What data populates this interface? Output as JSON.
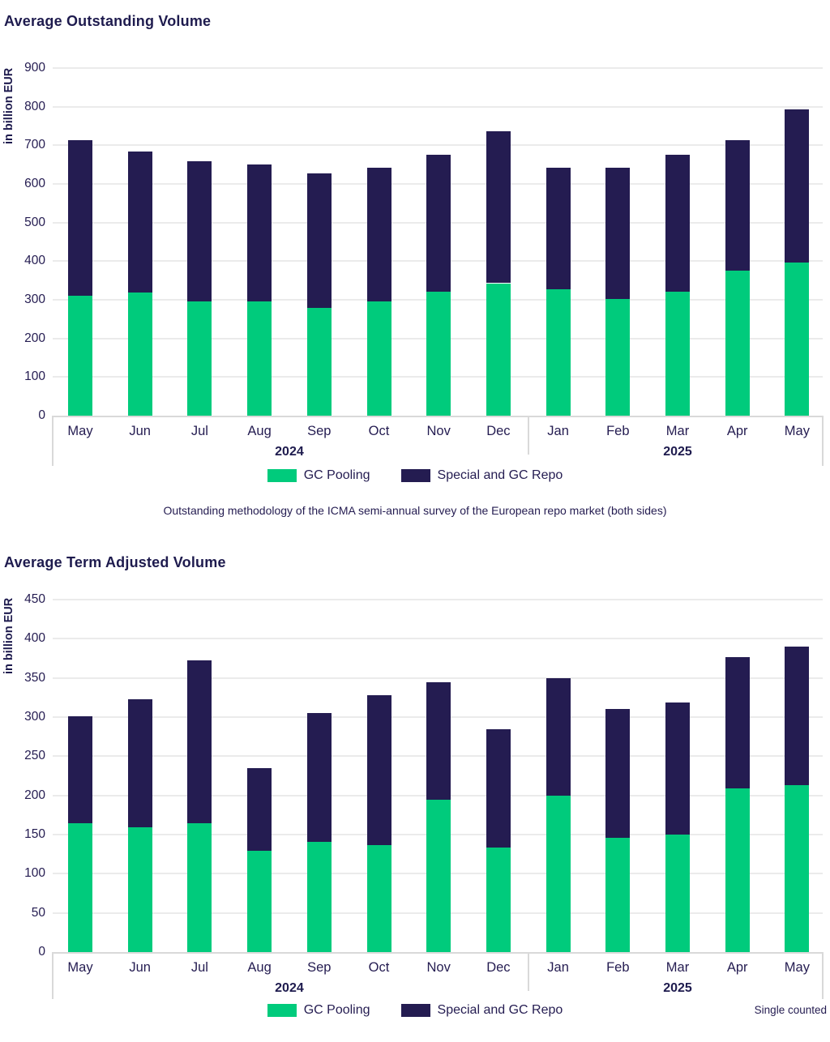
{
  "colors": {
    "gc_pooling_green": "#00cb7c",
    "special_repo_navy": "#241c51",
    "text_navy": "#1e1b4e",
    "gridline_gray": "#ebebeb",
    "axis_gray": "#d9d9d9"
  },
  "chart_data": [
    {
      "type": "bar",
      "stacked": true,
      "title": "Average Outstanding Volume",
      "ylabel": "in billion EUR",
      "ylim": [
        0,
        900
      ],
      "ystep": 100,
      "grid": true,
      "legend_position": "bottom",
      "categories": [
        "May",
        "Jun",
        "Jul",
        "Aug",
        "Sep",
        "Oct",
        "Nov",
        "Dec",
        "Jan",
        "Feb",
        "Mar",
        "Apr",
        "May"
      ],
      "year_groups": [
        {
          "label": "2024",
          "start": 0,
          "end": 7
        },
        {
          "label": "2025",
          "start": 8,
          "end": 12
        }
      ],
      "series": [
        {
          "name": "GC Pooling",
          "color": "#00cb7c",
          "values": [
            310,
            318,
            296,
            296,
            280,
            295,
            320,
            343,
            327,
            303,
            320,
            375,
            397
          ]
        },
        {
          "name": "Special and GC Repo",
          "color": "#241c51",
          "values": [
            403,
            365,
            363,
            355,
            347,
            348,
            355,
            394,
            316,
            340,
            355,
            338,
            396
          ]
        }
      ],
      "totals": [
        713,
        683,
        659,
        651,
        627,
        643,
        675,
        737,
        643,
        643,
        675,
        713,
        793
      ],
      "footnote": "Outstanding methodology of the ICMA semi-annual survey of the European repo market (both sides)"
    },
    {
      "type": "bar",
      "stacked": true,
      "title": "Average Term Adjusted Volume",
      "ylabel": "in billion EUR",
      "ylim": [
        0,
        450
      ],
      "ystep": 50,
      "grid": true,
      "legend_position": "bottom",
      "categories": [
        "May",
        "Jun",
        "Jul",
        "Aug",
        "Sep",
        "Oct",
        "Nov",
        "Dec",
        "Jan",
        "Feb",
        "Mar",
        "Apr",
        "May"
      ],
      "year_groups": [
        {
          "label": "2024",
          "start": 0,
          "end": 7
        },
        {
          "label": "2025",
          "start": 8,
          "end": 12
        }
      ],
      "series": [
        {
          "name": "GC Pooling",
          "color": "#00cb7c",
          "values": [
            164,
            159,
            164,
            129,
            141,
            137,
            195,
            133,
            200,
            146,
            150,
            209,
            213
          ]
        },
        {
          "name": "Special and GC Repo",
          "color": "#241c51",
          "values": [
            137,
            164,
            208,
            106,
            164,
            191,
            150,
            151,
            150,
            164,
            169,
            168,
            177
          ]
        }
      ],
      "totals": [
        301,
        323,
        372,
        235,
        305,
        328,
        345,
        284,
        350,
        310,
        319,
        377,
        390
      ],
      "note_right": "Single counted"
    }
  ]
}
